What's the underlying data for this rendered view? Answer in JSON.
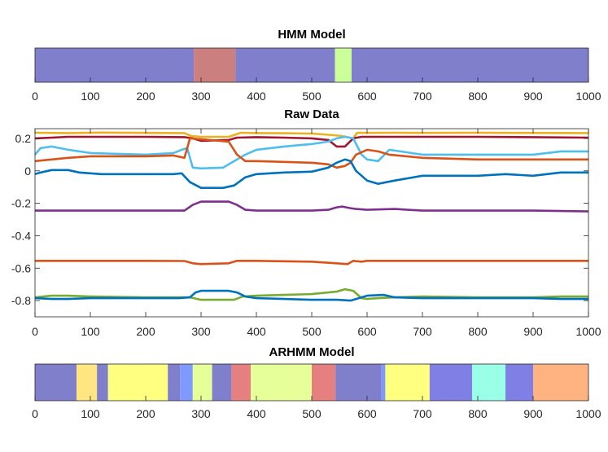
{
  "chart_data": [
    {
      "type": "segmentation",
      "title": "HMM Model",
      "xlim": [
        0,
        1000
      ],
      "xticks": [
        0,
        100,
        200,
        300,
        400,
        500,
        600,
        700,
        800,
        900,
        1000
      ],
      "segments": [
        {
          "start": 0,
          "end": 287,
          "color": "#7f7fcc"
        },
        {
          "start": 287,
          "end": 362,
          "color": "#cc7f7f"
        },
        {
          "start": 362,
          "end": 542,
          "color": "#7f7fcc"
        },
        {
          "start": 542,
          "end": 572,
          "color": "#ccff99"
        },
        {
          "start": 572,
          "end": 1000,
          "color": "#7f7fcc"
        }
      ]
    },
    {
      "type": "line",
      "title": "Raw Data",
      "xlim": [
        0,
        1000
      ],
      "ylim": [
        -0.9,
        0.26
      ],
      "xticks": [
        0,
        100,
        200,
        300,
        400,
        500,
        600,
        700,
        800,
        900,
        1000
      ],
      "yticks": [
        0.2,
        0,
        -0.2,
        -0.4,
        -0.6,
        -0.8
      ],
      "yticklabels": [
        "0.2",
        "0",
        "-0.2",
        "-0.4",
        "-0.6",
        "-0.8"
      ],
      "series": [
        {
          "name": "yellow",
          "color": "#edb120",
          "x": [
            0,
            60,
            120,
            200,
            270,
            282,
            300,
            350,
            372,
            400,
            450,
            500,
            540,
            555,
            575,
            582,
            600,
            650,
            700,
            800,
            900,
            1000
          ],
          "y": [
            0.235,
            0.233,
            0.236,
            0.234,
            0.233,
            0.215,
            0.21,
            0.21,
            0.235,
            0.233,
            0.232,
            0.23,
            0.22,
            0.215,
            0.2,
            0.235,
            0.234,
            0.235,
            0.234,
            0.235,
            0.234,
            0.233
          ]
        },
        {
          "name": "dark red",
          "color": "#a2142f",
          "x": [
            0,
            30,
            60,
            120,
            200,
            270,
            285,
            300,
            350,
            365,
            400,
            450,
            500,
            530,
            545,
            560,
            575,
            590,
            620,
            700,
            800,
            900,
            1000
          ],
          "y": [
            0.2,
            0.205,
            0.21,
            0.21,
            0.21,
            0.208,
            0.2,
            0.185,
            0.19,
            0.205,
            0.208,
            0.205,
            0.2,
            0.19,
            0.15,
            0.15,
            0.2,
            0.21,
            0.21,
            0.21,
            0.21,
            0.208,
            0.205
          ]
        },
        {
          "name": "light blue",
          "color": "#4dbeee",
          "x": [
            0,
            10,
            30,
            60,
            100,
            150,
            200,
            250,
            265,
            275,
            285,
            300,
            340,
            360,
            380,
            400,
            450,
            500,
            530,
            545,
            560,
            575,
            590,
            600,
            620,
            640,
            660,
            700,
            800,
            900,
            950,
            1000
          ],
          "y": [
            0.1,
            0.14,
            0.15,
            0.13,
            0.11,
            0.105,
            0.1,
            0.11,
            0.13,
            0.14,
            0.02,
            0.015,
            0.02,
            0.06,
            0.1,
            0.13,
            0.15,
            0.165,
            0.18,
            0.2,
            0.21,
            0.2,
            0.1,
            0.07,
            0.06,
            0.13,
            0.12,
            0.1,
            0.1,
            0.1,
            0.12,
            0.12
          ]
        },
        {
          "name": "orange",
          "color": "#d95319",
          "x": [
            0,
            30,
            60,
            100,
            150,
            200,
            250,
            270,
            280,
            300,
            350,
            365,
            380,
            400,
            450,
            500,
            530,
            545,
            560,
            570,
            580,
            600,
            620,
            640,
            700,
            800,
            900,
            950,
            1000
          ],
          "y": [
            0.06,
            0.07,
            0.08,
            0.09,
            0.09,
            0.09,
            0.095,
            0.08,
            0.2,
            0.195,
            0.18,
            0.1,
            0.06,
            0.06,
            0.055,
            0.05,
            0.04,
            0.02,
            0.03,
            0.05,
            0.1,
            0.13,
            0.12,
            0.1,
            0.08,
            0.07,
            0.07,
            0.07,
            0.07
          ]
        },
        {
          "name": "blue",
          "color": "#0072bd",
          "x": [
            0,
            10,
            30,
            60,
            80,
            120,
            200,
            250,
            265,
            280,
            300,
            340,
            360,
            380,
            400,
            450,
            500,
            530,
            545,
            560,
            570,
            580,
            600,
            620,
            650,
            700,
            800,
            850,
            900,
            950,
            1000
          ],
          "y": [
            -0.02,
            -0.01,
            0.005,
            0.005,
            -0.01,
            -0.02,
            -0.02,
            -0.02,
            -0.015,
            -0.07,
            -0.105,
            -0.105,
            -0.09,
            -0.04,
            -0.02,
            -0.01,
            -0.005,
            0.02,
            0.05,
            0.07,
            0.06,
            0.0,
            -0.06,
            -0.08,
            -0.06,
            -0.03,
            -0.03,
            -0.02,
            -0.03,
            -0.01,
            -0.01
          ]
        },
        {
          "name": "purple",
          "color": "#7e2f8e",
          "x": [
            0,
            100,
            200,
            270,
            285,
            300,
            350,
            365,
            380,
            400,
            500,
            530,
            545,
            555,
            570,
            580,
            600,
            650,
            700,
            800,
            900,
            1000
          ],
          "y": [
            -0.245,
            -0.245,
            -0.245,
            -0.245,
            -0.21,
            -0.19,
            -0.19,
            -0.21,
            -0.24,
            -0.245,
            -0.245,
            -0.24,
            -0.225,
            -0.22,
            -0.23,
            -0.235,
            -0.24,
            -0.235,
            -0.245,
            -0.245,
            -0.245,
            -0.25
          ]
        },
        {
          "name": "orange lower",
          "color": "#d95319",
          "x": [
            0,
            100,
            200,
            270,
            285,
            300,
            350,
            365,
            380,
            400,
            500,
            545,
            565,
            575,
            590,
            600,
            700,
            800,
            900,
            1000
          ],
          "y": [
            -0.555,
            -0.555,
            -0.555,
            -0.556,
            -0.57,
            -0.575,
            -0.57,
            -0.555,
            -0.555,
            -0.555,
            -0.56,
            -0.57,
            -0.575,
            -0.555,
            -0.56,
            -0.555,
            -0.555,
            -0.555,
            -0.555,
            -0.555
          ]
        },
        {
          "name": "green",
          "color": "#77ac30",
          "x": [
            0,
            30,
            60,
            100,
            200,
            260,
            280,
            300,
            360,
            375,
            400,
            450,
            500,
            545,
            560,
            575,
            590,
            600,
            620,
            650,
            700,
            800,
            900,
            950,
            1000
          ],
          "y": [
            -0.78,
            -0.77,
            -0.77,
            -0.775,
            -0.78,
            -0.78,
            -0.78,
            -0.795,
            -0.795,
            -0.775,
            -0.77,
            -0.765,
            -0.76,
            -0.745,
            -0.73,
            -0.74,
            -0.785,
            -0.79,
            -0.785,
            -0.78,
            -0.775,
            -0.78,
            -0.78,
            -0.775,
            -0.775
          ]
        },
        {
          "name": "blue lower",
          "color": "#0072bd",
          "x": [
            0,
            30,
            60,
            100,
            200,
            260,
            280,
            290,
            300,
            350,
            365,
            380,
            400,
            450,
            500,
            545,
            570,
            580,
            600,
            630,
            650,
            700,
            800,
            900,
            950,
            1000
          ],
          "y": [
            -0.785,
            -0.79,
            -0.79,
            -0.785,
            -0.785,
            -0.785,
            -0.78,
            -0.75,
            -0.74,
            -0.74,
            -0.75,
            -0.775,
            -0.785,
            -0.79,
            -0.795,
            -0.795,
            -0.8,
            -0.79,
            -0.77,
            -0.765,
            -0.78,
            -0.785,
            -0.785,
            -0.785,
            -0.79,
            -0.79
          ]
        }
      ]
    },
    {
      "type": "segmentation",
      "title": "ARHMM Model",
      "xlim": [
        0,
        1000
      ],
      "xticks": [
        0,
        100,
        200,
        300,
        400,
        500,
        600,
        700,
        800,
        900,
        1000
      ],
      "segments": [
        {
          "start": 0,
          "end": 75,
          "color": "#7f7fcc"
        },
        {
          "start": 75,
          "end": 112,
          "color": "#ffe680"
        },
        {
          "start": 112,
          "end": 132,
          "color": "#7f7fcc"
        },
        {
          "start": 132,
          "end": 240,
          "color": "#ffff80"
        },
        {
          "start": 240,
          "end": 262,
          "color": "#7f7fcc"
        },
        {
          "start": 262,
          "end": 285,
          "color": "#7f99ff"
        },
        {
          "start": 285,
          "end": 320,
          "color": "#e6ff99"
        },
        {
          "start": 320,
          "end": 355,
          "color": "#7f7fcc"
        },
        {
          "start": 355,
          "end": 390,
          "color": "#e67f7f"
        },
        {
          "start": 390,
          "end": 500,
          "color": "#e6ff99"
        },
        {
          "start": 500,
          "end": 543,
          "color": "#e67f7f"
        },
        {
          "start": 543,
          "end": 626,
          "color": "#7f7fcc"
        },
        {
          "start": 626,
          "end": 633,
          "color": "#7f99ff"
        },
        {
          "start": 633,
          "end": 713,
          "color": "#ffff80"
        },
        {
          "start": 713,
          "end": 790,
          "color": "#7f7fe6"
        },
        {
          "start": 790,
          "end": 850,
          "color": "#99ffe6"
        },
        {
          "start": 850,
          "end": 900,
          "color": "#7f7fe6"
        },
        {
          "start": 900,
          "end": 1000,
          "color": "#ffb380"
        }
      ]
    }
  ]
}
